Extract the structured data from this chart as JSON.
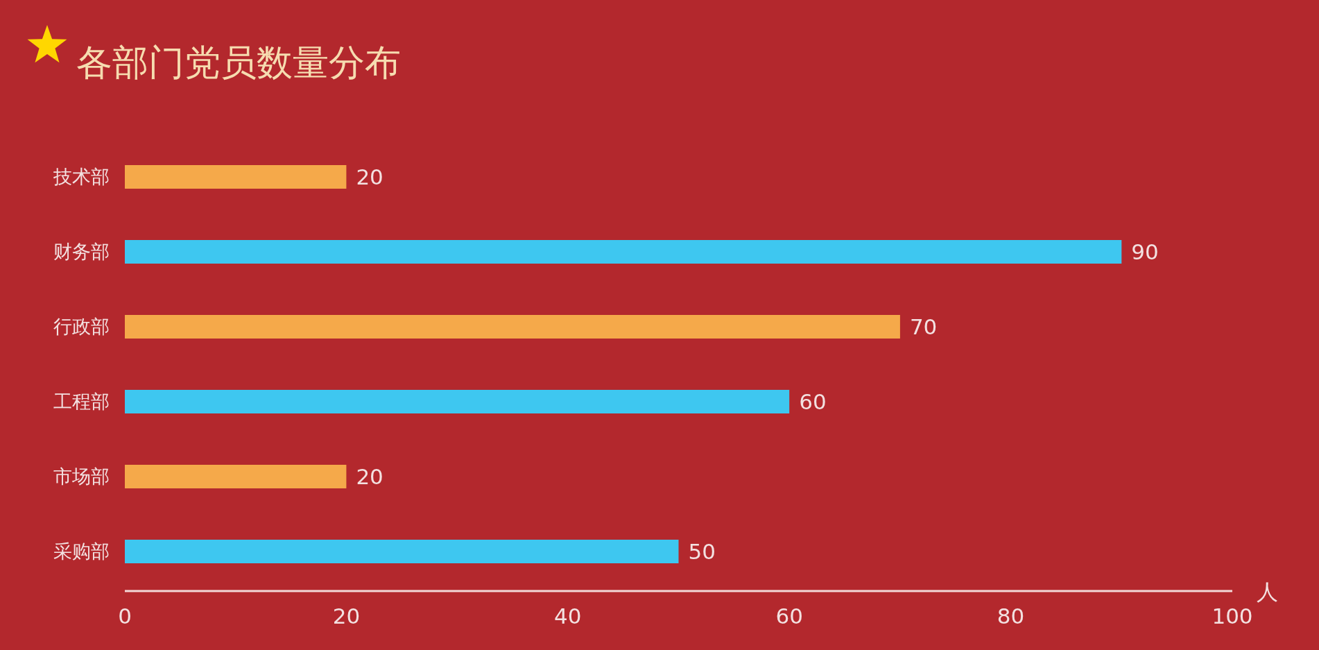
{
  "chart_data": {
    "type": "bar",
    "orientation": "horizontal",
    "title": "各部门党员数量分布",
    "xlabel": "人",
    "categories": [
      "技术部",
      "财务部",
      "行政部",
      "工程部",
      "市场部",
      "采购部"
    ],
    "values": [
      20,
      90,
      70,
      60,
      20,
      50
    ],
    "colors": [
      "#f5a94a",
      "#3ec7f0",
      "#f5a94a",
      "#3ec7f0",
      "#f5a94a",
      "#3ec7f0"
    ],
    "xlim": [
      0,
      100
    ],
    "xticks": [
      0,
      20,
      40,
      60,
      80,
      100
    ],
    "data_labels": true
  }
}
